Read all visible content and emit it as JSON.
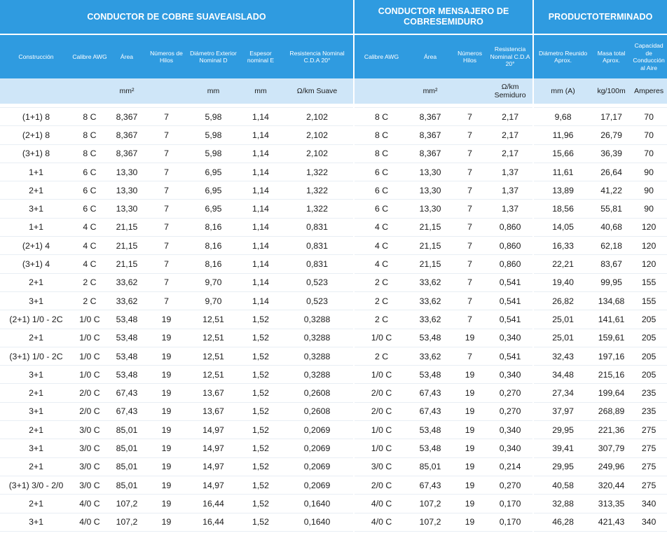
{
  "groups": [
    "CONDUCTOR DE COBRE SUAVEAISLADO",
    "CONDUCTOR MENSAJERO DE COBRESEMIDURO",
    "PRODUCTOTERMINADO"
  ],
  "headers": [
    "Construcción",
    "Calibre AWG",
    "Área",
    "Números de Hilos",
    "Diámetro Exterior Nominal D",
    "Espesor nominal E",
    "Resistencia Nominal C.D.A 20°",
    "Calibre AWG",
    "Área",
    "Números Hilos",
    "Resistencia Nominal C.D.A 20°",
    "Diámetro Reunido Aprox.",
    "Masa total Aprox.",
    "Capacidad de Conducción al Aire"
  ],
  "units": [
    "",
    "",
    "mm²",
    "",
    "mm",
    "mm",
    "Ω/km Suave",
    "",
    "mm²",
    "",
    "Ω/km Semiduro",
    "mm (A)",
    "kg/100m",
    "Amperes"
  ],
  "rows": [
    [
      "(1+1) 8",
      "8 C",
      "8,367",
      "7",
      "5,98",
      "1,14",
      "2,102",
      "8 C",
      "8,367",
      "7",
      "2,17",
      "9,68",
      "17,17",
      "70"
    ],
    [
      "(2+1) 8",
      "8 C",
      "8,367",
      "7",
      "5,98",
      "1,14",
      "2,102",
      "8 C",
      "8,367",
      "7",
      "2,17",
      "11,96",
      "26,79",
      "70"
    ],
    [
      "(3+1) 8",
      "8 C",
      "8,367",
      "7",
      "5,98",
      "1,14",
      "2,102",
      "8 C",
      "8,367",
      "7",
      "2,17",
      "15,66",
      "36,39",
      "70"
    ],
    [
      "1+1",
      "6 C",
      "13,30",
      "7",
      "6,95",
      "1,14",
      "1,322",
      "6 C",
      "13,30",
      "7",
      "1,37",
      "11,61",
      "26,64",
      "90"
    ],
    [
      "2+1",
      "6 C",
      "13,30",
      "7",
      "6,95",
      "1,14",
      "1,322",
      "6 C",
      "13,30",
      "7",
      "1,37",
      "13,89",
      "41,22",
      "90"
    ],
    [
      "3+1",
      "6 C",
      "13,30",
      "7",
      "6,95",
      "1,14",
      "1,322",
      "6 C",
      "13,30",
      "7",
      "1,37",
      "18,56",
      "55,81",
      "90"
    ],
    [
      "1+1",
      "4 C",
      "21,15",
      "7",
      "8,16",
      "1,14",
      "0,831",
      "4 C",
      "21,15",
      "7",
      "0,860",
      "14,05",
      "40,68",
      "120"
    ],
    [
      "(2+1) 4",
      "4 C",
      "21,15",
      "7",
      "8,16",
      "1,14",
      "0,831",
      "4 C",
      "21,15",
      "7",
      "0,860",
      "16,33",
      "62,18",
      "120"
    ],
    [
      "(3+1) 4",
      "4 C",
      "21,15",
      "7",
      "8,16",
      "1,14",
      "0,831",
      "4 C",
      "21,15",
      "7",
      "0,860",
      "22,21",
      "83,67",
      "120"
    ],
    [
      "2+1",
      "2 C",
      "33,62",
      "7",
      "9,70",
      "1,14",
      "0,523",
      "2 C",
      "33,62",
      "7",
      "0,541",
      "19,40",
      "99,95",
      "155"
    ],
    [
      "3+1",
      "2 C",
      "33,62",
      "7",
      "9,70",
      "1,14",
      "0,523",
      "2 C",
      "33,62",
      "7",
      "0,541",
      "26,82",
      "134,68",
      "155"
    ],
    [
      "(2+1) 1/0 - 2C",
      "1/0 C",
      "53,48",
      "19",
      "12,51",
      "1,52",
      "0,3288",
      "2 C",
      "33,62",
      "7",
      "0,541",
      "25,01",
      "141,61",
      "205"
    ],
    [
      "2+1",
      "1/0 C",
      "53,48",
      "19",
      "12,51",
      "1,52",
      "0,3288",
      "1/0 C",
      "53,48",
      "19",
      "0,340",
      "25,01",
      "159,61",
      "205"
    ],
    [
      "(3+1) 1/0 - 2C",
      "1/0 C",
      "53,48",
      "19",
      "12,51",
      "1,52",
      "0,3288",
      "2 C",
      "33,62",
      "7",
      "0,541",
      "32,43",
      "197,16",
      "205"
    ],
    [
      "3+1",
      "1/0 C",
      "53,48",
      "19",
      "12,51",
      "1,52",
      "0,3288",
      "1/0 C",
      "53,48",
      "19",
      "0,340",
      "34,48",
      "215,16",
      "205"
    ],
    [
      "2+1",
      "2/0 C",
      "67,43",
      "19",
      "13,67",
      "1,52",
      "0,2608",
      "2/0 C",
      "67,43",
      "19",
      "0,270",
      "27,34",
      "199,64",
      "235"
    ],
    [
      "3+1",
      "2/0 C",
      "67,43",
      "19",
      "13,67",
      "1,52",
      "0,2608",
      "2/0 C",
      "67,43",
      "19",
      "0,270",
      "37,97",
      "268,89",
      "235"
    ],
    [
      "2+1",
      "3/0 C",
      "85,01",
      "19",
      "14,97",
      "1,52",
      "0,2069",
      "1/0 C",
      "53,48",
      "19",
      "0,340",
      "29,95",
      "221,36",
      "275"
    ],
    [
      "3+1",
      "3/0 C",
      "85,01",
      "19",
      "14,97",
      "1,52",
      "0,2069",
      "1/0 C",
      "53,48",
      "19",
      "0,340",
      "39,41",
      "307,79",
      "275"
    ],
    [
      "2+1",
      "3/0 C",
      "85,01",
      "19",
      "14,97",
      "1,52",
      "0,2069",
      "3/0 C",
      "85,01",
      "19",
      "0,214",
      "29,95",
      "249,96",
      "275"
    ],
    [
      "(3+1) 3/0 - 2/0",
      "3/0 C",
      "85,01",
      "19",
      "14,97",
      "1,52",
      "0,2069",
      "2/0 C",
      "67,43",
      "19",
      "0,270",
      "40,58",
      "320,44",
      "275"
    ],
    [
      "2+1",
      "4/0 C",
      "107,2",
      "19",
      "16,44",
      "1,52",
      "0,1640",
      "4/0 C",
      "107,2",
      "19",
      "0,170",
      "32,88",
      "313,35",
      "340"
    ],
    [
      "3+1",
      "4/0 C",
      "107,2",
      "19",
      "16,44",
      "1,52",
      "0,1640",
      "4/0 C",
      "107,2",
      "19",
      "0,170",
      "46,28",
      "421,43",
      "340"
    ]
  ],
  "colors": {
    "header_blue": "#2f9be0",
    "units_band": "#cfe6f8",
    "text": "#1a1a1a"
  }
}
